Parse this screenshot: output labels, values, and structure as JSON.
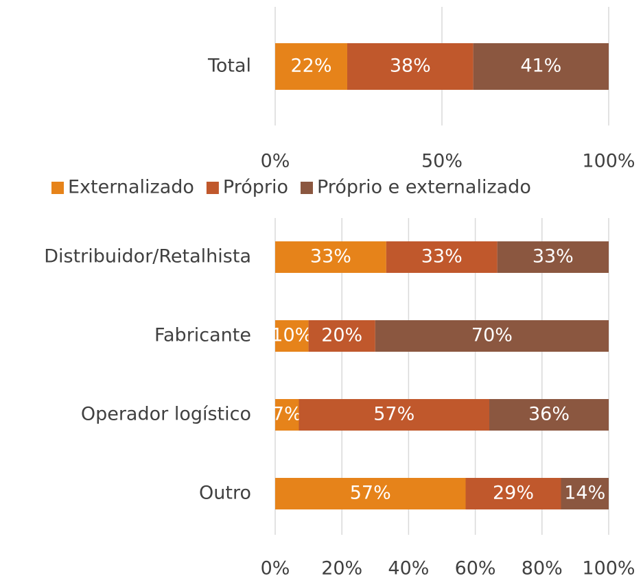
{
  "chart_data": [
    {
      "type": "stacked_bar_horizontal",
      "categories": [
        "Total"
      ],
      "series": [
        {
          "name": "Externalizado",
          "color": "#e6831a",
          "values": [
            21.6
          ],
          "value_labels": [
            "22%"
          ]
        },
        {
          "name": "Próprio",
          "color": "#c0582c",
          "values": [
            37.8
          ],
          "value_labels": [
            "38%"
          ]
        },
        {
          "name": "Próprio e externalizado",
          "color": "#8b5740",
          "values": [
            40.6
          ],
          "value_labels": [
            "41%"
          ]
        }
      ],
      "xlim": [
        0,
        100
      ],
      "xticks": [
        {
          "value": 0,
          "label": "0%"
        },
        {
          "value": 50,
          "label": "50%"
        },
        {
          "value": 100,
          "label": "100%"
        }
      ],
      "grid": true,
      "legend": "bottom"
    },
    {
      "type": "stacked_bar_horizontal",
      "categories": [
        "Distribuidor/Retalhista",
        "Fabricante",
        "Operador logístico",
        "Outro"
      ],
      "series": [
        {
          "color": "#e6831a",
          "values": [
            33.3,
            10,
            7.1,
            57.1
          ],
          "value_labels": [
            "33%",
            "10%",
            "7%",
            "57%"
          ]
        },
        {
          "color": "#c0582c",
          "values": [
            33.3,
            20,
            57.1,
            28.6
          ],
          "value_labels": [
            "33%",
            "20%",
            "57%",
            "29%"
          ]
        },
        {
          "color": "#8b5740",
          "values": [
            33.4,
            70,
            35.8,
            14.3
          ],
          "value_labels": [
            "33%",
            "70%",
            "36%",
            "14%"
          ]
        }
      ],
      "xlim": [
        0,
        100
      ],
      "xticks": [
        {
          "value": 0,
          "label": "0%"
        },
        {
          "value": 20,
          "label": "20%"
        },
        {
          "value": 40,
          "label": "40%"
        },
        {
          "value": 60,
          "label": "60%"
        },
        {
          "value": 80,
          "label": "80%"
        },
        {
          "value": 100,
          "label": "100%"
        }
      ],
      "grid": true
    }
  ]
}
